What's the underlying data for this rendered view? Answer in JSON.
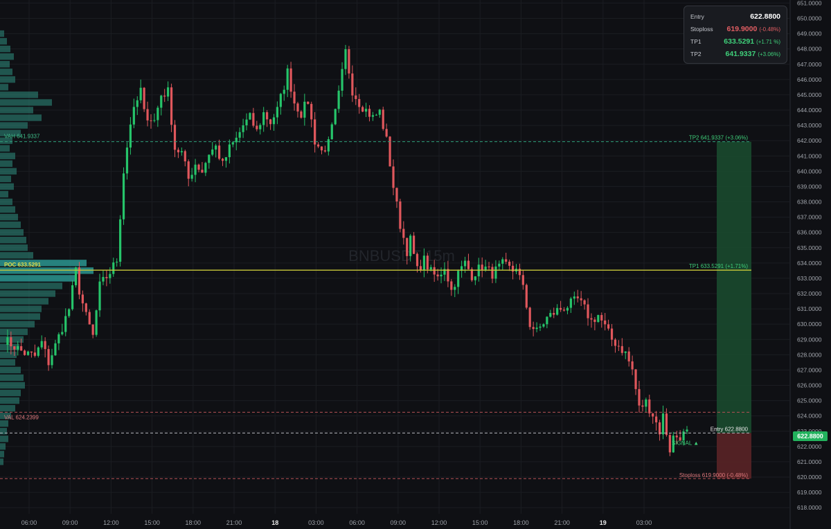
{
  "watermark": "BNBUSDT 15m",
  "info_box": {
    "rows": [
      {
        "label": "Entry",
        "value": "622.8800",
        "pct": "",
        "tone": "white"
      },
      {
        "label": "Stoploss",
        "value": "619.9000",
        "pct": "(-0.48%)",
        "tone": "red"
      },
      {
        "label": "TP1",
        "value": "633.5291",
        "pct": "(+1.71 %)",
        "tone": "green"
      },
      {
        "label": "TP2",
        "value": "641.9337",
        "pct": "(+3.06%)",
        "tone": "green"
      }
    ]
  },
  "current_price": "622.8800",
  "colors": {
    "background": "#0f1014",
    "bull": "#26c46a",
    "bear": "#e0575c",
    "poc": "#c9c83a",
    "tp_zone": "#1a4a2e",
    "sl_zone": "#5a2426",
    "profile": "#2f8f80",
    "profile_poc": "#2fa7a0"
  },
  "chart_data": {
    "type": "candlestick",
    "y_axis_range": [
      617.6,
      651.2
    ],
    "y_ticks": [
      "618.0000",
      "619.0000",
      "620.0000",
      "621.0000",
      "622.0000",
      "623.0000",
      "624.0000",
      "625.0000",
      "626.0000",
      "627.0000",
      "628.0000",
      "629.0000",
      "630.0000",
      "631.0000",
      "632.0000",
      "633.0000",
      "634.0000",
      "635.0000",
      "636.0000",
      "637.0000",
      "638.0000",
      "639.0000",
      "640.0000",
      "641.0000",
      "642.0000",
      "643.0000",
      "644.0000",
      "645.0000",
      "646.0000",
      "647.0000",
      "648.0000",
      "649.0000",
      "650.0000",
      "651.0000"
    ],
    "x_ticks": [
      {
        "label": "06:00",
        "bold": false
      },
      {
        "label": "09:00",
        "bold": false
      },
      {
        "label": "12:00",
        "bold": false
      },
      {
        "label": "15:00",
        "bold": false
      },
      {
        "label": "18:00",
        "bold": false
      },
      {
        "label": "21:00",
        "bold": false
      },
      {
        "label": "18",
        "bold": true
      },
      {
        "label": "03:00",
        "bold": false
      },
      {
        "label": "06:00",
        "bold": false
      },
      {
        "label": "09:00",
        "bold": false
      },
      {
        "label": "12:00",
        "bold": false
      },
      {
        "label": "15:00",
        "bold": false
      },
      {
        "label": "18:00",
        "bold": false
      },
      {
        "label": "21:00",
        "bold": false
      },
      {
        "label": "19",
        "bold": true
      },
      {
        "label": "03:00",
        "bold": false
      }
    ],
    "waypoints": [
      [
        0,
        629.0
      ],
      [
        6,
        628.1
      ],
      [
        9,
        627.9
      ],
      [
        11,
        628.8
      ],
      [
        13,
        627.5
      ],
      [
        15,
        628.6
      ],
      [
        19,
        631.0
      ],
      [
        21,
        633.5
      ],
      [
        22,
        632.2
      ],
      [
        24,
        630.5
      ],
      [
        26,
        629.2
      ],
      [
        28,
        632.5
      ],
      [
        31,
        633.4
      ],
      [
        33,
        634.2
      ],
      [
        35,
        640.0
      ],
      [
        37,
        643.2
      ],
      [
        40,
        645.3
      ],
      [
        41,
        643.8
      ],
      [
        44,
        643.3
      ],
      [
        46,
        645.0
      ],
      [
        48,
        645.2
      ],
      [
        50,
        641.5
      ],
      [
        52,
        641.2
      ],
      [
        54,
        639.5
      ],
      [
        56,
        640.5
      ],
      [
        58,
        640.0
      ],
      [
        60,
        641.2
      ],
      [
        62,
        641.6
      ],
      [
        64,
        640.4
      ],
      [
        66,
        641.5
      ],
      [
        68,
        642.1
      ],
      [
        70,
        643.0
      ],
      [
        72,
        643.5
      ],
      [
        74,
        642.6
      ],
      [
        76,
        643.8
      ],
      [
        78,
        643.2
      ],
      [
        80,
        644.0
      ],
      [
        82,
        645.6
      ],
      [
        83,
        646.5
      ],
      [
        85,
        644.5
      ],
      [
        87,
        643.8
      ],
      [
        89,
        644.6
      ],
      [
        91,
        642.0
      ],
      [
        93,
        641.3
      ],
      [
        95,
        641.8
      ],
      [
        97,
        643.8
      ],
      [
        98,
        645.0
      ],
      [
        100,
        647.8
      ],
      [
        102,
        645.3
      ],
      [
        104,
        644.5
      ],
      [
        106,
        644.0
      ],
      [
        108,
        643.5
      ],
      [
        110,
        643.9
      ],
      [
        112,
        642.0
      ],
      [
        114,
        639.0
      ],
      [
        116,
        636.5
      ],
      [
        118,
        634.8
      ],
      [
        119,
        635.5
      ],
      [
        121,
        633.5
      ],
      [
        123,
        634.2
      ],
      [
        125,
        633.4
      ],
      [
        127,
        633.0
      ],
      [
        129,
        633.8
      ],
      [
        131,
        632.2
      ],
      [
        133,
        633.3
      ],
      [
        135,
        634.0
      ],
      [
        137,
        633.2
      ],
      [
        140,
        633.8
      ],
      [
        143,
        633.3
      ],
      [
        146,
        633.9
      ],
      [
        149,
        633.5
      ],
      [
        150,
        633.8
      ],
      [
        152,
        632.3
      ],
      [
        154,
        630.0
      ],
      [
        156,
        629.5
      ],
      [
        159,
        630.4
      ],
      [
        162,
        630.9
      ],
      [
        165,
        631.2
      ],
      [
        168,
        631.6
      ],
      [
        170,
        631.0
      ],
      [
        172,
        630.2
      ],
      [
        174,
        630.6
      ],
      [
        176,
        629.8
      ],
      [
        178,
        629.0
      ],
      [
        180,
        628.6
      ],
      [
        182,
        628.1
      ],
      [
        184,
        627.0
      ],
      [
        186,
        624.5
      ],
      [
        188,
        624.9
      ],
      [
        190,
        624.1
      ],
      [
        192,
        623.0
      ],
      [
        193,
        624.0
      ],
      [
        195,
        621.8
      ],
      [
        196,
        622.6
      ],
      [
        198,
        622.7
      ],
      [
        200,
        622.88
      ]
    ],
    "levels": [
      {
        "name": "VAH",
        "value": 641.9337,
        "label": "VAH  641.9337",
        "style": "dashed-green"
      },
      {
        "name": "POC",
        "value": 633.5291,
        "label": "POC  633.5291",
        "style": "solid-yellow"
      },
      {
        "name": "VAL",
        "value": 624.2399,
        "label": "VAL  624.2399",
        "style": "dashed-red"
      },
      {
        "name": "Entry",
        "value": 622.88,
        "label": "Entry 622.8800",
        "style": "dashed-white"
      },
      {
        "name": "Stoploss",
        "value": 619.9,
        "label": "Stoploss 619.9000 (-0.48%)",
        "style": "dashed-red"
      },
      {
        "name": "TP1",
        "value": 633.5291,
        "label": "TP1 633.5291 (+1.71%)",
        "style": "label-green"
      },
      {
        "name": "TP2",
        "value": 641.9337,
        "label": "TP2 641.9337 (+3.06%)",
        "style": "label-green"
      }
    ],
    "signal_label": "SIGNAL ▲",
    "volume_profile": [
      [
        649.0,
        6
      ],
      [
        648.5,
        10
      ],
      [
        648.0,
        15
      ],
      [
        647.5,
        20
      ],
      [
        647.0,
        14
      ],
      [
        646.5,
        18
      ],
      [
        646.0,
        22
      ],
      [
        645.5,
        12
      ],
      [
        645.0,
        55
      ],
      [
        644.5,
        75
      ],
      [
        644.0,
        48
      ],
      [
        643.5,
        60
      ],
      [
        643.0,
        40
      ],
      [
        642.5,
        30
      ],
      [
        642.0,
        18
      ],
      [
        641.5,
        14
      ],
      [
        641.0,
        22
      ],
      [
        640.5,
        18
      ],
      [
        640.0,
        24
      ],
      [
        639.5,
        16
      ],
      [
        639.0,
        20
      ],
      [
        638.5,
        12
      ],
      [
        638.0,
        18
      ],
      [
        637.5,
        22
      ],
      [
        637.0,
        26
      ],
      [
        636.5,
        30
      ],
      [
        636.0,
        34
      ],
      [
        635.5,
        38
      ],
      [
        635.0,
        40
      ],
      [
        634.5,
        48
      ],
      [
        634.0,
        125
      ],
      [
        633.5,
        135
      ],
      [
        633.0,
        110
      ],
      [
        632.5,
        90
      ],
      [
        632.0,
        80
      ],
      [
        631.5,
        70
      ],
      [
        631.0,
        60
      ],
      [
        630.5,
        58
      ],
      [
        630.0,
        50
      ],
      [
        629.5,
        40
      ],
      [
        629.0,
        34
      ],
      [
        628.5,
        28
      ],
      [
        628.0,
        24
      ],
      [
        627.5,
        22
      ],
      [
        627.0,
        30
      ],
      [
        626.5,
        34
      ],
      [
        626.0,
        36
      ],
      [
        625.5,
        30
      ],
      [
        625.0,
        28
      ],
      [
        624.5,
        22
      ],
      [
        624.0,
        16
      ],
      [
        623.5,
        12
      ],
      [
        623.0,
        10
      ],
      [
        622.5,
        12
      ],
      [
        622.0,
        8
      ],
      [
        621.5,
        6
      ],
      [
        621.0,
        5
      ]
    ]
  }
}
